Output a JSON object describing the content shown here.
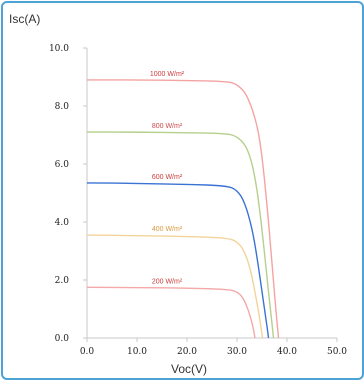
{
  "chart_data": {
    "type": "line",
    "title": "",
    "xlabel": "Voc(V)",
    "ylabel": "Isc(A)",
    "xlim": [
      0,
      50
    ],
    "ylim": [
      0,
      10
    ],
    "x_ticks": [
      "0.0",
      "10.0",
      "20.0",
      "30.0",
      "40.0",
      "50.0"
    ],
    "y_ticks": [
      "0.0",
      "2.0",
      "4.0",
      "6.0",
      "8.0",
      "10.0"
    ],
    "grid": false,
    "legend": "inline labels above each curve",
    "series": [
      {
        "name": "1000 W/m²",
        "color": "#f4a3a3",
        "points": [
          [
            0,
            8.9
          ],
          [
            10,
            8.9
          ],
          [
            20,
            8.88
          ],
          [
            28,
            8.85
          ],
          [
            30,
            8.75
          ],
          [
            32,
            8.4
          ],
          [
            34,
            7.4
          ],
          [
            35,
            6.3
          ],
          [
            36,
            4.6
          ],
          [
            37,
            2.6
          ],
          [
            37.8,
            0.9
          ],
          [
            38.3,
            0
          ]
        ]
      },
      {
        "name": "800 W/m²",
        "color": "#b5cf8c",
        "points": [
          [
            0,
            7.1
          ],
          [
            10,
            7.1
          ],
          [
            20,
            7.08
          ],
          [
            28,
            7.05
          ],
          [
            30,
            6.95
          ],
          [
            32,
            6.6
          ],
          [
            33.5,
            5.7
          ],
          [
            34.8,
            4.1
          ],
          [
            35.8,
            2.4
          ],
          [
            36.8,
            0.8
          ],
          [
            37.3,
            0
          ]
        ]
      },
      {
        "name": "600 W/m²",
        "color": "#3a73d4",
        "points": [
          [
            0,
            5.35
          ],
          [
            10,
            5.33
          ],
          [
            20,
            5.3
          ],
          [
            28,
            5.25
          ],
          [
            30,
            5.1
          ],
          [
            31.5,
            4.7
          ],
          [
            33,
            3.8
          ],
          [
            34,
            2.8
          ],
          [
            35,
            1.6
          ],
          [
            36,
            0.4
          ],
          [
            36.3,
            0
          ]
        ]
      },
      {
        "name": "400 W/m²",
        "color": "#f2d49a",
        "points": [
          [
            0,
            3.55
          ],
          [
            10,
            3.53
          ],
          [
            20,
            3.5
          ],
          [
            28,
            3.45
          ],
          [
            30,
            3.33
          ],
          [
            31.5,
            3.0
          ],
          [
            32.8,
            2.3
          ],
          [
            33.8,
            1.4
          ],
          [
            34.7,
            0.5
          ],
          [
            35.1,
            0
          ]
        ]
      },
      {
        "name": "200 W/m²",
        "color": "#f4a8a8",
        "points": [
          [
            0,
            1.75
          ],
          [
            10,
            1.74
          ],
          [
            20,
            1.72
          ],
          [
            28,
            1.68
          ],
          [
            30,
            1.6
          ],
          [
            31.2,
            1.4
          ],
          [
            32.3,
            0.95
          ],
          [
            33.2,
            0.4
          ],
          [
            33.6,
            0
          ]
        ]
      }
    ]
  }
}
